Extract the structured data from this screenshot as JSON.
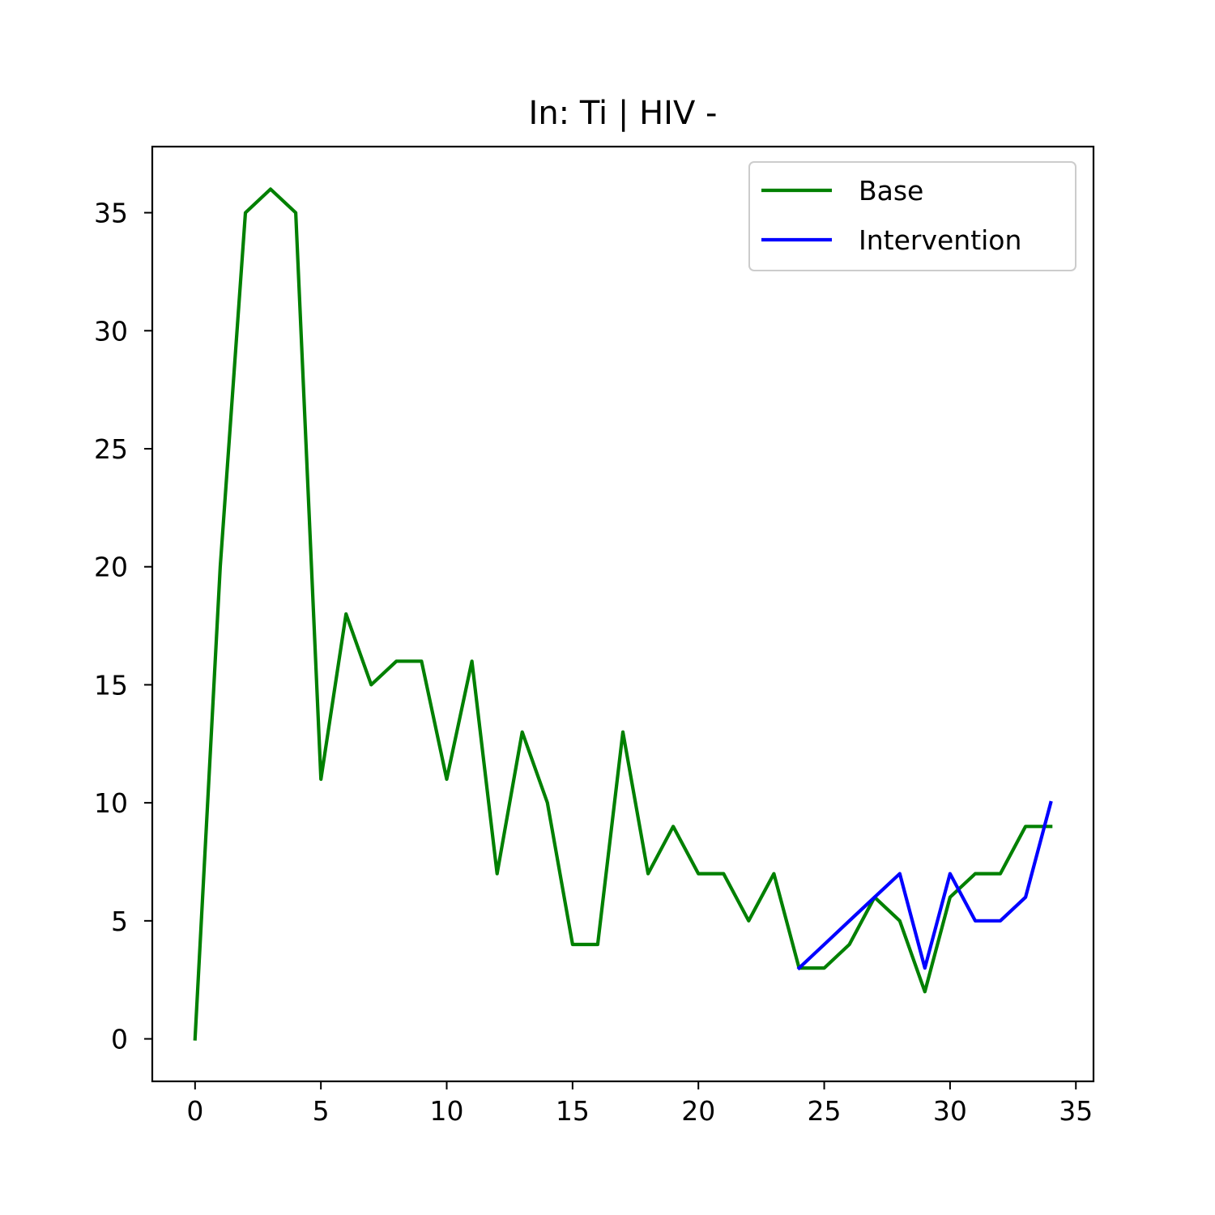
{
  "chart_data": {
    "type": "line",
    "title": "In: Ti | HIV -",
    "xlabel": "",
    "ylabel": "",
    "xlim": [
      -1.7,
      35.7
    ],
    "ylim": [
      -1.8,
      37.8
    ],
    "xticks": [
      0,
      5,
      10,
      15,
      20,
      25,
      30,
      35
    ],
    "yticks": [
      0,
      5,
      10,
      15,
      20,
      25,
      30,
      35
    ],
    "grid": false,
    "legend_position": "top-right",
    "series": [
      {
        "name": "Base",
        "color": "#008000",
        "x": [
          0,
          1,
          2,
          3,
          4,
          5,
          6,
          7,
          8,
          9,
          10,
          11,
          12,
          13,
          14,
          15,
          16,
          17,
          18,
          19,
          20,
          21,
          22,
          23,
          24,
          25,
          26,
          27,
          28,
          29,
          30,
          31,
          32,
          33,
          34
        ],
        "values": [
          0,
          20,
          35,
          36,
          35,
          11,
          18,
          15,
          16,
          16,
          11,
          16,
          7,
          13,
          10,
          4,
          4,
          13,
          7,
          9,
          7,
          7,
          5,
          7,
          3,
          3,
          4,
          6,
          5,
          2,
          6,
          7,
          7,
          9,
          9
        ]
      },
      {
        "name": "Intervention",
        "color": "#0000ff",
        "x": [
          24,
          25,
          26,
          27,
          28,
          29,
          30,
          31,
          32,
          33,
          34
        ],
        "values": [
          3,
          4,
          5,
          6,
          7,
          3,
          7,
          5,
          5,
          6,
          10
        ]
      }
    ]
  }
}
